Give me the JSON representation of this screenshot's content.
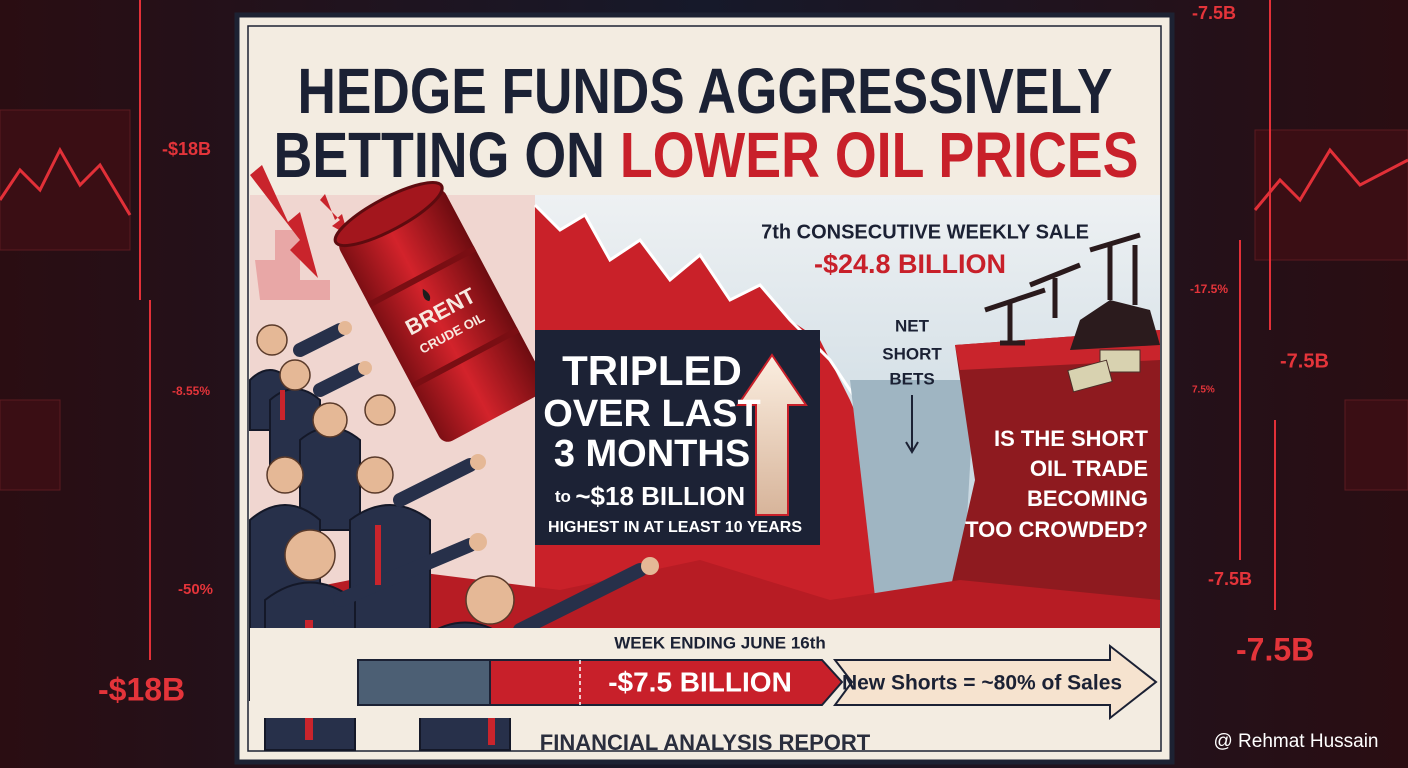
{
  "header": {
    "title_line1": "HEDGE FUNDS AGGRESSIVELY",
    "title_line2_start": "BETTING ON",
    "title_line2_highlight": "LOWER OIL PRICES"
  },
  "barrel": {
    "brand": "BRENT",
    "label": "CRUDE OIL"
  },
  "weekly_sale": {
    "label": "7th CONSECUTIVE WEEKLY SALE",
    "amount": "-$24.8 BILLION"
  },
  "net_short_bets": {
    "lines": [
      "NET",
      "SHORT",
      "BETS"
    ]
  },
  "tripled_box": {
    "lines": [
      "TRIPLED",
      "OVER LAST",
      "3 MONTHS"
    ],
    "to_prefix": "to",
    "to_amount": "~$18 BILLION",
    "note": "HIGHEST IN AT LEAST 10 YEARS"
  },
  "question": {
    "lines": [
      "IS THE SHORT",
      "OIL TRADE",
      "BECOMING",
      "TOO CROWDED?"
    ]
  },
  "week_bar": {
    "caption": "WEEK ENDING JUNE 16th",
    "amount": "-$7.5 BILLION",
    "note": "New Shorts = ~80% of Sales"
  },
  "footer": {
    "label": "FINANCIAL ANALYSIS REPORT"
  },
  "watermark": "@ Rehmat Hussain",
  "background_labels": {
    "left": [
      "-$18B",
      "-8.55%",
      "-50%",
      "-$18B"
    ],
    "right": [
      "-7.5B",
      "-17.5%",
      "-7.5B",
      "7.5%",
      "-7.5B",
      "-7.5B"
    ]
  }
}
